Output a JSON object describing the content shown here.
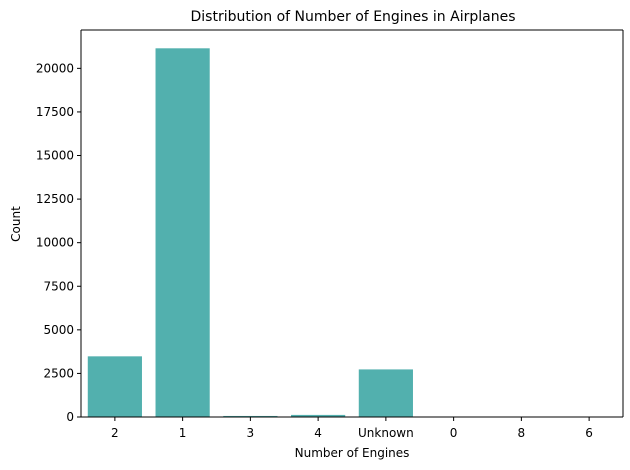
{
  "chart_data": {
    "type": "bar",
    "title": "Distribution of Number of Engines in Airplanes",
    "xlabel": "Number of Engines",
    "ylabel": "Count",
    "categories": [
      "2",
      "1",
      "3",
      "4",
      "Unknown",
      "0",
      "8",
      "6"
    ],
    "values": [
      3480,
      21150,
      60,
      120,
      2730,
      5,
      3,
      2
    ],
    "ylim": [
      0,
      22200
    ],
    "yticks": [
      0,
      2500,
      5000,
      7500,
      10000,
      12500,
      15000,
      17500,
      20000
    ],
    "grid": false,
    "bar_color": "#52b0ae"
  }
}
